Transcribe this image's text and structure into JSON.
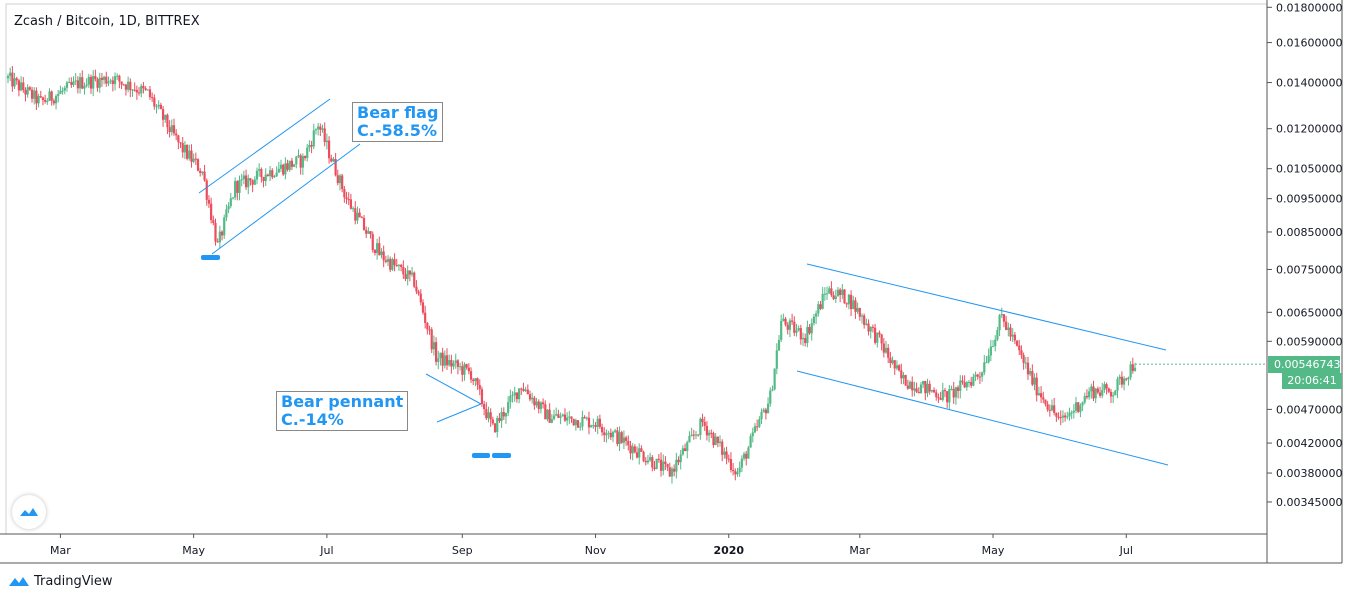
{
  "chart_title": "Zcash / Bitcoin, 1D, BITTREX",
  "colors": {
    "up": "#53b987",
    "down": "#eb4d5c",
    "annotation": "#2196f3",
    "trendline": "#2196f3",
    "grid": "#e6e6e6",
    "axis": "#131722"
  },
  "chart_data": {
    "type": "candlestick",
    "title": "Zcash / Bitcoin, 1D, BITTREX",
    "y_scale": "log",
    "ylim": [
      0.0031,
      0.0182
    ],
    "y_ticks": [
      "0.01800000",
      "0.01600000",
      "0.01400000",
      "0.01200000",
      "0.01050000",
      "0.00950000",
      "0.00850000",
      "0.00750000",
      "0.00650000",
      "0.00590000",
      "0.00470000",
      "0.00420000",
      "0.00380000",
      "0.00345000"
    ],
    "x_ticks": [
      "Mar",
      "May",
      "Jul",
      "Sep",
      "Nov",
      "2020",
      "Mar",
      "May",
      "Jul"
    ],
    "x_ticks_bold": [
      false,
      false,
      false,
      false,
      false,
      true,
      false,
      false,
      false
    ],
    "approx_close_path": [
      {
        "date": "2019-02-05",
        "close": 0.0142
      },
      {
        "date": "2019-02-20",
        "close": 0.0131
      },
      {
        "date": "2019-03-10",
        "close": 0.014
      },
      {
        "date": "2019-03-25",
        "close": 0.0142
      },
      {
        "date": "2019-04-10",
        "close": 0.0135
      },
      {
        "date": "2019-04-25",
        "close": 0.0113
      },
      {
        "date": "2019-05-05",
        "close": 0.0104
      },
      {
        "date": "2019-05-12",
        "close": 0.0081
      },
      {
        "date": "2019-05-20",
        "close": 0.0099
      },
      {
        "date": "2019-06-05",
        "close": 0.0104
      },
      {
        "date": "2019-06-20",
        "close": 0.0108
      },
      {
        "date": "2019-06-27",
        "close": 0.0122
      },
      {
        "date": "2019-07-10",
        "close": 0.0095
      },
      {
        "date": "2019-07-25",
        "close": 0.0079
      },
      {
        "date": "2019-08-10",
        "close": 0.0072
      },
      {
        "date": "2019-08-20",
        "close": 0.0056
      },
      {
        "date": "2019-09-05",
        "close": 0.0053
      },
      {
        "date": "2019-09-15",
        "close": 0.0044
      },
      {
        "date": "2019-09-28",
        "close": 0.0051
      },
      {
        "date": "2019-10-10",
        "close": 0.0046
      },
      {
        "date": "2019-11-01",
        "close": 0.0045
      },
      {
        "date": "2019-11-15",
        "close": 0.0042
      },
      {
        "date": "2019-12-05",
        "close": 0.0038
      },
      {
        "date": "2019-12-20",
        "close": 0.0045
      },
      {
        "date": "2020-01-05",
        "close": 0.0038
      },
      {
        "date": "2020-01-20",
        "close": 0.0049
      },
      {
        "date": "2020-01-25",
        "close": 0.0063
      },
      {
        "date": "2020-02-05",
        "close": 0.006
      },
      {
        "date": "2020-02-15",
        "close": 0.007
      },
      {
        "date": "2020-02-25",
        "close": 0.0068
      },
      {
        "date": "2020-03-10",
        "close": 0.0059
      },
      {
        "date": "2020-03-20",
        "close": 0.0052
      },
      {
        "date": "2020-04-10",
        "close": 0.0049
      },
      {
        "date": "2020-04-25",
        "close": 0.0053
      },
      {
        "date": "2020-05-05",
        "close": 0.0064
      },
      {
        "date": "2020-05-20",
        "close": 0.0051
      },
      {
        "date": "2020-06-01",
        "close": 0.0045
      },
      {
        "date": "2020-06-15",
        "close": 0.005
      },
      {
        "date": "2020-06-25",
        "close": 0.005
      },
      {
        "date": "2020-07-05",
        "close": 0.0055
      }
    ],
    "current_price": "0.00546743",
    "countdown": "20:06:41",
    "annotations": [
      {
        "line1": "Bear flag",
        "line2": "C.-58.5%"
      },
      {
        "line1": "Bear pennant",
        "line2": "C.-14%"
      }
    ]
  },
  "footer": {
    "brand": "TradingView"
  }
}
